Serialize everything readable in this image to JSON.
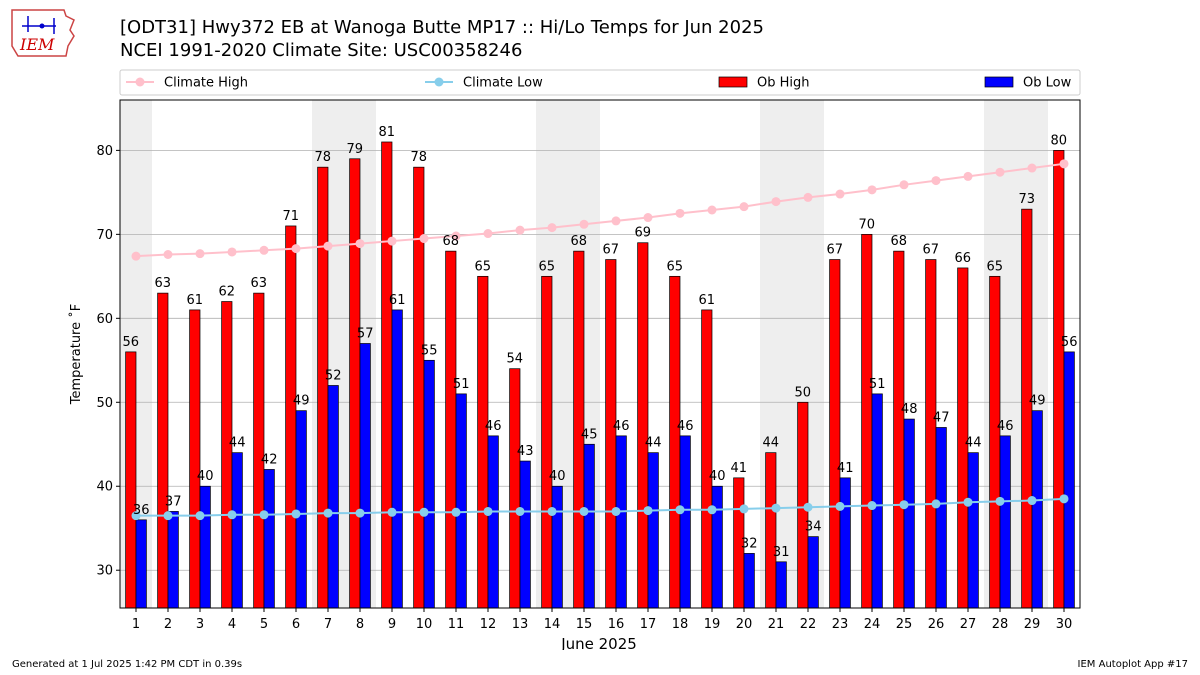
{
  "header": {
    "logo_text": "IEM",
    "title_line1": "[ODT31] Hwy372 EB at Wanoga Butte MP17  :: Hi/Lo Temps for Jun 2025",
    "title_line2": "NCEI 1991-2020 Climate Site: USC00358246"
  },
  "footer": {
    "generated": "Generated at 1 Jul 2025 1:42 PM CDT in 0.39s",
    "app": "IEM Autoplot App #17"
  },
  "colors": {
    "ob_high": "#ff0000",
    "ob_low": "#0000ff",
    "climate_high": "#ffc0cb",
    "climate_low": "#87ceeb",
    "weekend_shade": "#eeeeee",
    "grid": "#b0b0b0"
  },
  "chart_data": {
    "type": "bar",
    "xlabel": "June 2025",
    "ylabel": "Temperature ˚F",
    "ylim": [
      25.5,
      86
    ],
    "yticks": [
      30,
      40,
      50,
      60,
      70,
      80
    ],
    "grid": "horizontal",
    "legend_position": "top",
    "categories": [
      "1",
      "2",
      "3",
      "4",
      "5",
      "6",
      "7",
      "8",
      "9",
      "10",
      "11",
      "12",
      "13",
      "14",
      "15",
      "16",
      "17",
      "18",
      "19",
      "20",
      "21",
      "22",
      "23",
      "24",
      "25",
      "26",
      "27",
      "28",
      "29",
      "30"
    ],
    "shaded_days": [
      1,
      7,
      8,
      14,
      15,
      21,
      22,
      28,
      29
    ],
    "series": [
      {
        "name": "Ob High",
        "kind": "bar",
        "values": [
          56,
          63,
          61,
          62,
          63,
          71,
          78,
          79,
          81,
          78,
          68,
          65,
          54,
          65,
          68,
          67,
          69,
          65,
          61,
          41,
          44,
          50,
          67,
          70,
          68,
          67,
          66,
          65,
          73,
          80
        ],
        "labels": [
          "56",
          "63",
          "61",
          "62",
          "63",
          "71",
          "78",
          "79",
          "81",
          "78",
          "68",
          "65",
          "54",
          "65",
          "68",
          "67",
          "69",
          "65",
          "61",
          "41",
          "44",
          "50",
          "67",
          "70",
          "68",
          "67",
          "66",
          "65",
          "73",
          "80"
        ]
      },
      {
        "name": "Ob Low",
        "kind": "bar",
        "values": [
          36,
          37,
          40,
          44,
          42,
          49,
          52,
          57,
          61,
          55,
          51,
          46,
          43,
          40,
          45,
          46,
          44,
          46,
          40,
          32,
          31,
          34,
          41,
          51,
          48,
          47,
          44,
          46,
          49,
          56
        ],
        "labels": [
          "36",
          "37",
          "40",
          "44",
          "42",
          "49",
          "52",
          "57",
          "61",
          "55",
          "51",
          "46",
          "43",
          "40",
          "45",
          "46",
          "44",
          "46",
          "40",
          "32",
          "31",
          "34",
          "41",
          "51",
          "48",
          "47",
          "44",
          "46",
          "49",
          "56"
        ]
      },
      {
        "name": "Climate High",
        "kind": "line",
        "values": [
          67.4,
          67.6,
          67.7,
          67.9,
          68.1,
          68.3,
          68.6,
          68.9,
          69.2,
          69.5,
          69.8,
          70.1,
          70.5,
          70.8,
          71.2,
          71.6,
          72.0,
          72.5,
          72.9,
          73.3,
          73.9,
          74.4,
          74.8,
          75.3,
          75.9,
          76.4,
          76.9,
          77.4,
          77.9,
          78.4
        ]
      },
      {
        "name": "Climate Low",
        "kind": "line",
        "values": [
          36.5,
          36.5,
          36.5,
          36.6,
          36.6,
          36.7,
          36.8,
          36.8,
          36.9,
          36.9,
          36.9,
          37.0,
          37.0,
          37.0,
          37.0,
          37.0,
          37.1,
          37.2,
          37.2,
          37.3,
          37.4,
          37.5,
          37.6,
          37.7,
          37.8,
          37.9,
          38.1,
          38.2,
          38.3,
          38.5
        ]
      }
    ]
  }
}
